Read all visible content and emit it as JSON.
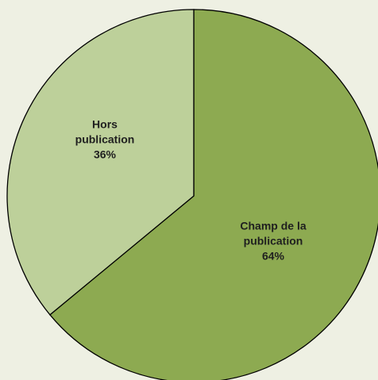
{
  "chart_data": {
    "type": "pie",
    "title": "",
    "slices": [
      {
        "label": [
          "Champ de la",
          "publication",
          "64%"
        ],
        "name": "Champ de la publication",
        "value": 64,
        "color": "#8DAA51"
      },
      {
        "label": [
          "Hors",
          "publication",
          "36%"
        ],
        "name": "Hors publication",
        "value": 36,
        "color": "#BDD09A"
      }
    ],
    "start_angle_deg": 0,
    "direction": "clockwise",
    "stroke_color": "#000000"
  }
}
